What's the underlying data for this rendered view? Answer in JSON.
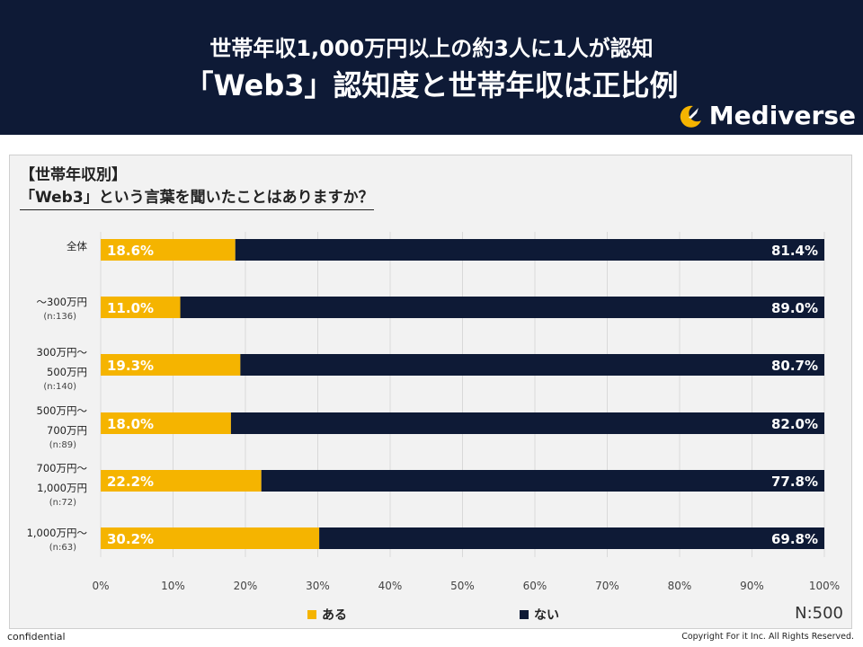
{
  "header": {
    "title_line1": "世帯年収1,000万円以上の約3人に1人が認知",
    "title_line2": "「Web3」認知度と世帯年収は正比例",
    "brand": "Mediverse"
  },
  "section": {
    "title": "【世帯年収別】",
    "question": "「Web3」という言葉を聞いたことはありますか？"
  },
  "colors": {
    "aru": "#f5b400",
    "nai": "#0e1a36",
    "header_bg": "#0e1a36",
    "panel_bg": "#f2f2f2"
  },
  "chart_data": {
    "type": "bar",
    "orientation": "horizontal-stacked-100",
    "categories": [
      {
        "lines": [
          "全体"
        ],
        "sub": ""
      },
      {
        "lines": [
          "～300万円"
        ],
        "sub": "(n:136)"
      },
      {
        "lines": [
          "300万円～",
          "500万円"
        ],
        "sub": "(n:140)"
      },
      {
        "lines": [
          "500万円～",
          "700万円"
        ],
        "sub": "(n:89)"
      },
      {
        "lines": [
          "700万円～",
          "1,000万円"
        ],
        "sub": "(n:72)"
      },
      {
        "lines": [
          "1,000万円～"
        ],
        "sub": "(n:63)"
      }
    ],
    "series": [
      {
        "name": "ある",
        "values": [
          18.6,
          11.0,
          19.3,
          18.0,
          22.2,
          30.2
        ],
        "labels": [
          "18.6%",
          "11.0%",
          "19.3%",
          "18.0%",
          "22.2%",
          "30.2%"
        ]
      },
      {
        "name": "ない",
        "values": [
          81.4,
          89.0,
          80.7,
          82.0,
          77.8,
          69.8
        ],
        "labels": [
          "81.4%",
          "89.0%",
          "80.7%",
          "82.0%",
          "77.8%",
          "69.8%"
        ]
      }
    ],
    "xticks": [
      "0%",
      "10%",
      "20%",
      "30%",
      "40%",
      "50%",
      "60%",
      "70%",
      "80%",
      "90%",
      "100%"
    ],
    "xlim": [
      0,
      100
    ],
    "legend_position": "bottom"
  },
  "legend": {
    "aru": "ある",
    "nai": "ない"
  },
  "sample_size": "N:500",
  "footer": {
    "left": "confidential",
    "right": "Copyright For it Inc. All Rights Reserved."
  }
}
